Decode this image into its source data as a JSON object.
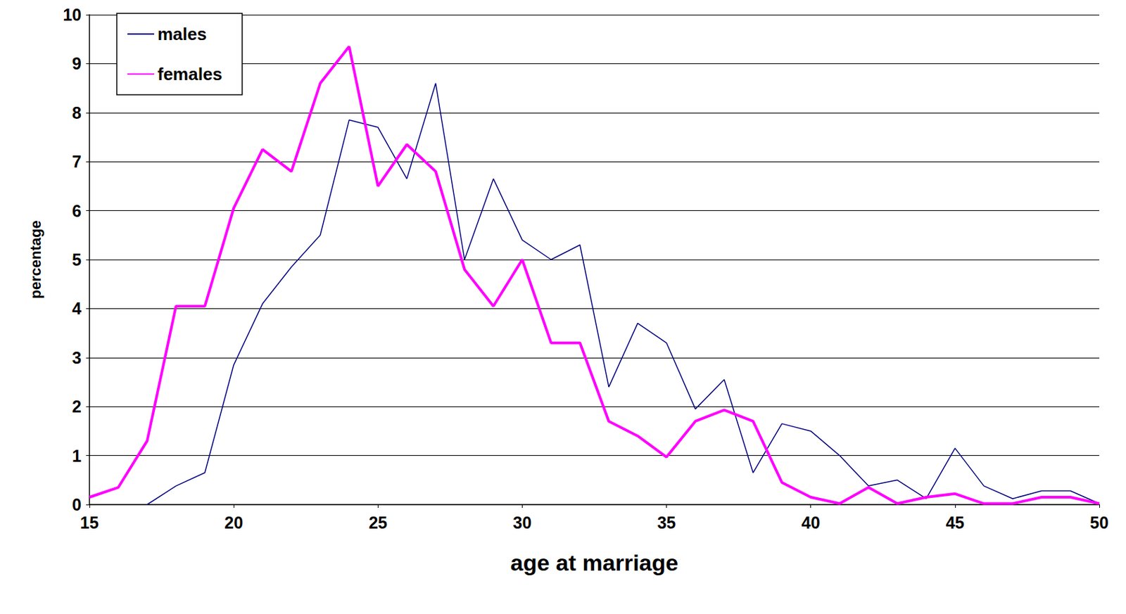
{
  "chart_data": {
    "type": "line",
    "x_label": "age at marriage",
    "y_label": "percentage",
    "x": [
      15,
      16,
      17,
      18,
      19,
      20,
      21,
      22,
      23,
      24,
      25,
      26,
      27,
      28,
      29,
      30,
      31,
      32,
      33,
      34,
      35,
      36,
      37,
      38,
      39,
      40,
      41,
      42,
      43,
      44,
      45,
      46,
      47,
      48,
      49,
      50
    ],
    "series": [
      {
        "name": "males",
        "color": "#000080",
        "values": [
          null,
          null,
          0,
          0.38,
          0.65,
          2.85,
          4.1,
          4.85,
          5.5,
          7.85,
          7.7,
          6.65,
          8.6,
          5.0,
          6.65,
          5.4,
          5.0,
          5.3,
          2.4,
          3.7,
          3.3,
          1.95,
          2.55,
          0.65,
          1.65,
          1.5,
          1.0,
          0.38,
          0.5,
          0.12,
          1.15,
          0.38,
          0.12,
          0.28,
          0.28,
          0.02
        ]
      },
      {
        "name": "females",
        "color": "#ff00ff",
        "values": [
          0.15,
          0.35,
          1.3,
          4.05,
          4.05,
          6.05,
          7.25,
          6.8,
          8.6,
          9.35,
          6.5,
          7.35,
          6.8,
          4.8,
          4.05,
          5.0,
          3.3,
          3.3,
          1.7,
          1.4,
          0.97,
          1.7,
          1.93,
          1.7,
          0.45,
          0.15,
          0.02,
          0.35,
          0.02,
          0.15,
          0.22,
          0.02,
          0.02,
          0.15,
          0.15,
          0.02
        ]
      }
    ],
    "xlim": [
      15,
      50
    ],
    "xticks": [
      15,
      20,
      25,
      30,
      35,
      40,
      45,
      50
    ],
    "ylim": [
      0,
      10
    ],
    "yticks": [
      0,
      1,
      2,
      3,
      4,
      5,
      6,
      7,
      8,
      9,
      10
    ],
    "grid": true,
    "legend": "upper left"
  }
}
